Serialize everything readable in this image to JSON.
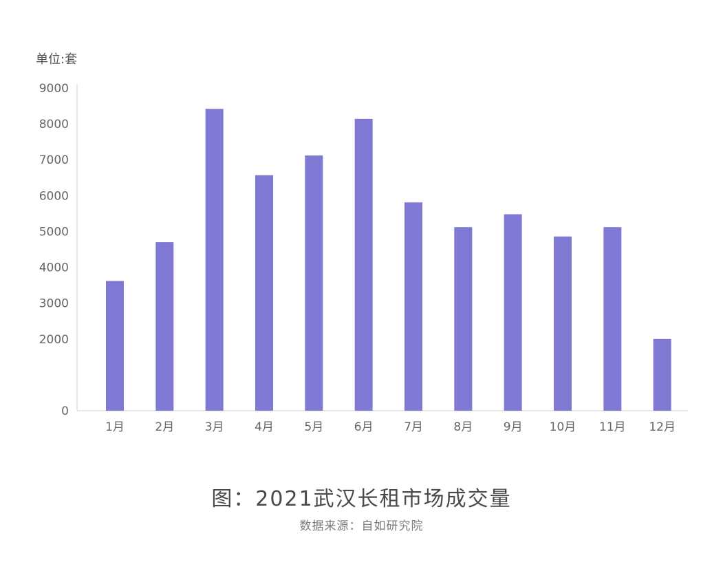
{
  "chart_data": {
    "type": "bar",
    "title": "图：2021武汉长租市场成交量",
    "source": "数据来源：自如研究院",
    "unit_label": "单位:套",
    "categories": [
      "1月",
      "2月",
      "3月",
      "4月",
      "5月",
      "6月",
      "7月",
      "8月",
      "9月",
      "10月",
      "11月",
      "12月"
    ],
    "values": [
      3620,
      4700,
      8420,
      6570,
      7120,
      8140,
      5810,
      5120,
      5480,
      4860,
      5120,
      2000
    ],
    "ylim": [
      0,
      9000
    ],
    "yticks": [
      0,
      2000,
      3000,
      4000,
      5000,
      6000,
      7000,
      8000,
      9000
    ],
    "xlabel": "",
    "ylabel": "",
    "grid": false,
    "bar_color": "#8079d4",
    "axis_color": "#cfcfcf"
  }
}
